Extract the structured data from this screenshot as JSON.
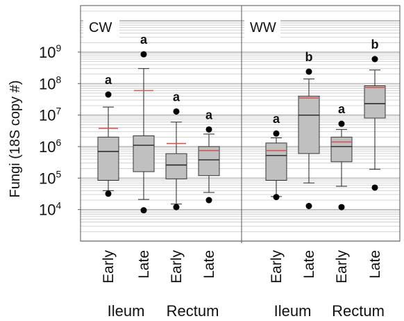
{
  "chart_data": {
    "type": "box",
    "ylabel": "Fungi (18S copy #)",
    "yscale": "log",
    "ylim": [
      1000,
      30000000000
    ],
    "yticks": [
      {
        "value": 10000,
        "base": "10",
        "exp": "4"
      },
      {
        "value": 100000,
        "base": "10",
        "exp": "5"
      },
      {
        "value": 1000000,
        "base": "10",
        "exp": "6"
      },
      {
        "value": 10000000,
        "base": "10",
        "exp": "7"
      },
      {
        "value": 100000000,
        "base": "10",
        "exp": "8"
      },
      {
        "value": 1000000000,
        "base": "10",
        "exp": "9"
      }
    ],
    "grid": true,
    "colors": {
      "box": "#c0c0c0",
      "mean": "#d9534f",
      "outlier": "#000000",
      "grid": "#c8c8c8"
    },
    "panels": [
      {
        "label": "CW",
        "groups": [
          "Ileum",
          "Rectum"
        ],
        "boxes": [
          {
            "category": "Early",
            "group": "Ileum",
            "letter": "a",
            "whisker_low": 40000,
            "q1": 85000,
            "median": 700000,
            "q3": 2000000,
            "whisker_high": 18000000,
            "mean": 3800000,
            "outliers": [
              45000000,
              32000
            ]
          },
          {
            "category": "Late",
            "group": "Ileum",
            "letter": "a",
            "whisker_low": 21000,
            "q1": 160000,
            "median": 1100000,
            "q3": 2200000,
            "whisker_high": 300000000,
            "mean": 60000000,
            "outliers": [
              850000000,
              9500
            ]
          },
          {
            "category": "Early",
            "group": "Rectum",
            "letter": "a",
            "whisker_low": 15000,
            "q1": 95000,
            "median": 260000,
            "q3": 600000,
            "whisker_high": 6000000,
            "mean": 1250000,
            "outliers": [
              13000000,
              12000
            ]
          },
          {
            "category": "Late",
            "group": "Rectum",
            "letter": "a",
            "whisker_low": 35000,
            "q1": 120000,
            "median": 380000,
            "q3": 1000000,
            "whisker_high": 2500000,
            "mean": 750000,
            "outliers": [
              3500000,
              20000
            ]
          }
        ]
      },
      {
        "label": "WW",
        "groups": [
          "Ileum",
          "Rectum"
        ],
        "boxes": [
          {
            "category": "Early",
            "group": "Ileum",
            "letter": "a",
            "whisker_low": 26000,
            "q1": 85000,
            "median": 520000,
            "q3": 1300000,
            "whisker_high": 1900000,
            "mean": 750000,
            "outliers": [
              2600000,
              25000
            ]
          },
          {
            "category": "Late",
            "group": "Ileum",
            "letter": "b",
            "whisker_low": 70000,
            "q1": 600000,
            "median": 10000000,
            "q3": 40000000,
            "whisker_high": 140000000,
            "mean": 35000000,
            "outliers": [
              240000000,
              13000
            ]
          },
          {
            "category": "Early",
            "group": "Rectum",
            "letter": "a",
            "whisker_low": 55000,
            "q1": 330000,
            "median": 1000000,
            "q3": 2000000,
            "whisker_high": 3500000,
            "mean": 1400000,
            "outliers": [
              5300000,
              12000
            ]
          },
          {
            "category": "Late",
            "group": "Rectum",
            "letter": "b",
            "whisker_low": 190000,
            "q1": 8000000,
            "median": 23000000,
            "q3": 85000000,
            "whisker_high": 270000000,
            "mean": 75000000,
            "outliers": [
              600000000,
              50000
            ]
          }
        ]
      }
    ]
  }
}
